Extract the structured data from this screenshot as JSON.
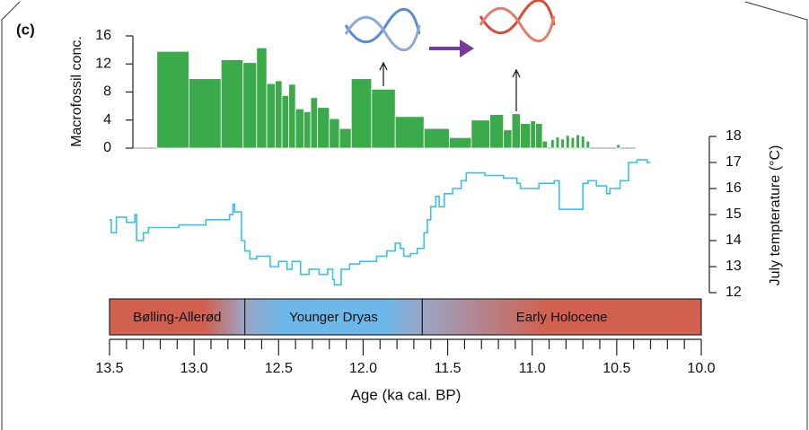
{
  "chart_data": [
    {
      "type": "histogram",
      "ylabel": "Macrofossil conc.",
      "color": "#3aaa4a",
      "xlim": [
        13.5,
        10.0
      ],
      "ylim": [
        0,
        16
      ],
      "yticks": [
        0,
        4,
        8,
        12,
        16
      ],
      "bins": [
        13.22,
        13.03,
        12.84,
        12.71,
        12.63,
        12.57,
        12.52,
        12.48,
        12.44,
        12.4,
        12.35,
        12.31,
        12.27,
        12.2,
        12.14,
        12.07,
        11.95,
        11.81,
        11.64,
        11.49,
        11.36,
        11.25,
        11.17,
        11.12,
        11.07,
        11.01,
        10.98,
        10.94,
        10.91,
        10.89,
        10.87,
        10.86,
        10.84,
        10.83,
        10.81,
        10.8,
        10.78,
        10.77,
        10.75,
        10.74,
        10.72,
        10.71,
        10.69,
        10.68,
        10.66,
        10.5,
        10.48
      ],
      "values": [
        13.8,
        9.9,
        12.6,
        12.2,
        14.3,
        9.2,
        9.6,
        7.5,
        9.1,
        5.6,
        5.2,
        7.2,
        5.8,
        4.2,
        2.8,
        9.9,
        8.4,
        4.5,
        2.8,
        1.5,
        4.0,
        4.8,
        2.6,
        4.9,
        3.5,
        3.9,
        3.5,
        1.0,
        null,
        1.2,
        null,
        1.6,
        null,
        1.3,
        null,
        1.8,
        null,
        1.5,
        null,
        1.9,
        null,
        1.7,
        null,
        1.0,
        null,
        0.5
      ]
    },
    {
      "type": "line",
      "panel_label": "(c)",
      "ylabel": "July tempterature (°C)",
      "xlabel": "Age (ka cal. BP)",
      "color": "#3cc0e6",
      "xlim": [
        13.5,
        10.0
      ],
      "xticks": [
        13.5,
        {
          "value": 13,
          "label": "13.0"
        },
        12.5,
        {
          "value": 12,
          "label": "12.0"
        },
        11.5,
        {
          "value": 11,
          "label": "11.0"
        },
        10.5,
        {
          "value": 10,
          "label": "10.0"
        }
      ],
      "xminorticks": [
        13.4,
        13.3,
        13.2,
        13.1,
        12.9,
        12.8,
        12.7,
        12.6,
        12.4,
        12.3,
        12.2,
        12.1,
        11.9,
        11.8,
        11.7,
        11.6,
        11.4,
        11.3,
        11.2,
        11.1,
        10.9,
        10.8,
        10.7,
        10.6,
        10.4,
        10.3,
        10.2,
        10.1
      ],
      "ylim": [
        12,
        18
      ],
      "yticks": [
        12,
        13,
        14,
        15,
        16,
        17,
        18
      ],
      "x": [
        13.5,
        13.49,
        13.46,
        13.4,
        13.35,
        13.34,
        13.3,
        13.27,
        13.09,
        12.93,
        12.79,
        12.77,
        12.76,
        12.72,
        12.7,
        12.67,
        12.63,
        12.55,
        12.5,
        12.45,
        12.42,
        12.37,
        12.32,
        12.26,
        12.21,
        12.18,
        12.17,
        12.13,
        12.08,
        12.02,
        11.97,
        11.92,
        11.86,
        11.81,
        11.78,
        11.76,
        11.72,
        11.68,
        11.64,
        11.62,
        11.6,
        11.57,
        11.55,
        11.52,
        11.47,
        11.42,
        11.39,
        11.28,
        11.17,
        11.09,
        11.07,
        10.96,
        10.91,
        10.87,
        10.84,
        10.7,
        10.67,
        10.62,
        10.56,
        10.54,
        10.48,
        10.43,
        10.38,
        10.32,
        10.3
      ],
      "values": [
        14.8,
        14.3,
        14.9,
        14.7,
        15.0,
        14.0,
        14.3,
        14.5,
        14.6,
        14.8,
        15.0,
        15.4,
        15.1,
        14.0,
        13.6,
        13.3,
        13.4,
        13.0,
        13.2,
        12.9,
        13.2,
        12.7,
        12.9,
        12.7,
        12.9,
        12.5,
        12.3,
        12.9,
        13.1,
        13.2,
        13.2,
        13.4,
        13.6,
        13.9,
        13.7,
        13.4,
        13.5,
        13.7,
        14.3,
        14.8,
        15.3,
        15.7,
        15.3,
        15.8,
        16.0,
        16.3,
        16.6,
        16.5,
        16.4,
        16.2,
        16.0,
        16.2,
        16.2,
        16.3,
        15.2,
        16.2,
        16.3,
        16.1,
        15.8,
        16.0,
        16.3,
        17.0,
        17.1,
        17.0,
        17.0
      ],
      "periods": [
        {
          "label": "Bølling-Allerød",
          "start": 13.5,
          "end": 12.7,
          "color": "#d2604f"
        },
        {
          "label": "Younger Dryas",
          "start": 12.7,
          "end": 11.65,
          "color": "#6db8e8"
        },
        {
          "label": "Early Holocene",
          "start": 11.65,
          "end": 10.0,
          "color": "#d2604f"
        }
      ]
    }
  ]
}
